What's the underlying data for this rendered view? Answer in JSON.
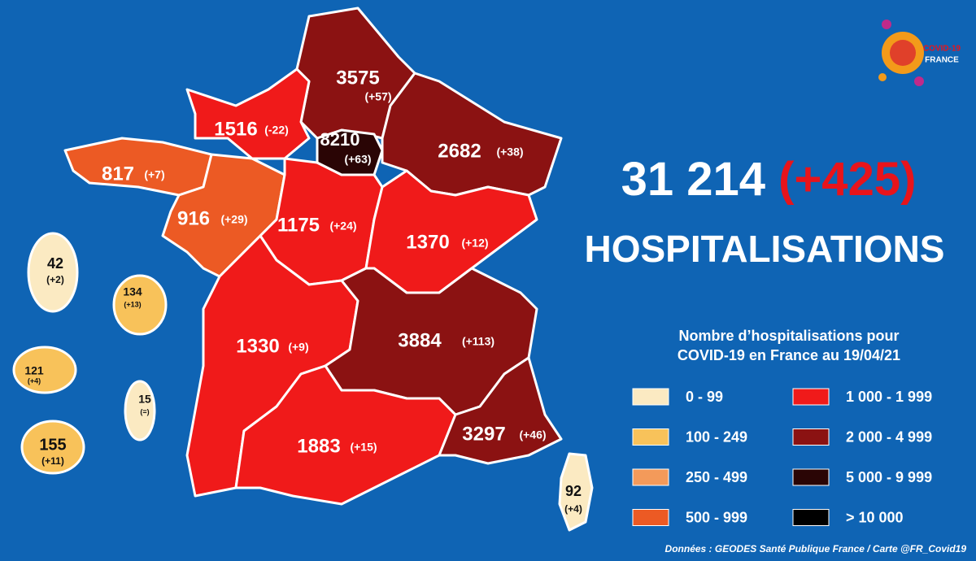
{
  "logo": {
    "line1": "COVID-19",
    "line2": "FRANCE"
  },
  "headline": {
    "total": "31 214",
    "change": "(+425)",
    "label": "HOSPITALISATIONS"
  },
  "legend": {
    "title_line1": "Nombre d’hospitalisations pour",
    "title_line2": "COVID-19 en France au 19/04/21",
    "items": [
      {
        "label": "0 - 99",
        "color": "#fbeac2"
      },
      {
        "label": "100 - 249",
        "color": "#f8c25a"
      },
      {
        "label": "250 - 499",
        "color": "#f39a5a"
      },
      {
        "label": "500 - 999",
        "color": "#ec5a24"
      },
      {
        "label": "1 000 - 1 999",
        "color": "#f01a1a"
      },
      {
        "label": "2 000 - 4 999",
        "color": "#8b1212"
      },
      {
        "label": "5 000 - 9 999",
        "color": "#2a0505"
      },
      {
        "label": "> 10 000",
        "color": "#000000"
      }
    ]
  },
  "regions": [
    {
      "value": "3575",
      "change": "(+57)",
      "color": "#8b1212"
    },
    {
      "value": "1516",
      "change": "(-22)",
      "color": "#f01a1a"
    },
    {
      "value": "8210",
      "change": "(+63)",
      "color": "#2a0505"
    },
    {
      "value": "2682",
      "change": "(+38)",
      "color": "#8b1212"
    },
    {
      "value": "817",
      "change": "(+7)",
      "color": "#ec5a24"
    },
    {
      "value": "916",
      "change": "(+29)",
      "color": "#ec5a24"
    },
    {
      "value": "1175",
      "change": "(+24)",
      "color": "#f01a1a"
    },
    {
      "value": "1370",
      "change": "(+12)",
      "color": "#f01a1a"
    },
    {
      "value": "1330",
      "change": "(+9)",
      "color": "#f01a1a"
    },
    {
      "value": "3884",
      "change": "(+113)",
      "color": "#8b1212"
    },
    {
      "value": "1883",
      "change": "(+15)",
      "color": "#f01a1a"
    },
    {
      "value": "3297",
      "change": "(+46)",
      "color": "#8b1212"
    },
    {
      "value": "92",
      "change": "(+4)",
      "color": "#fbeac2"
    },
    {
      "value": "42",
      "change": "(+2)",
      "color": "#fbeac2"
    },
    {
      "value": "134",
      "change": "(+13)",
      "color": "#f8c25a"
    },
    {
      "value": "121",
      "change": "(+4)",
      "color": "#f8c25a"
    },
    {
      "value": "15",
      "change": "(=)",
      "color": "#fbeac2"
    },
    {
      "value": "155",
      "change": "(+11)",
      "color": "#f8c25a"
    }
  ],
  "source": "Données : GEODES Santé Publique France / Carte @FR_Covid19"
}
